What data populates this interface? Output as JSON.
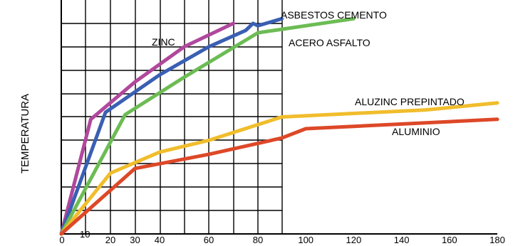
{
  "chart_data": {
    "type": "line",
    "ylabel": "TEMPERATURA",
    "xlabel": "",
    "grid": true,
    "xticks": [
      {
        "v": 0,
        "label": "0"
      },
      {
        "v": 10,
        "label": "10"
      },
      {
        "v": 20,
        "label": "20"
      },
      {
        "v": 30,
        "label": "30"
      },
      {
        "v": 40,
        "label": "40"
      },
      {
        "v": 60,
        "label": "60"
      },
      {
        "v": 80,
        "label": "80"
      },
      {
        "v": 100,
        "label": "100"
      },
      {
        "v": 120,
        "label": "120"
      },
      {
        "v": 140,
        "label": "140"
      },
      {
        "v": 160,
        "label": "160"
      },
      {
        "v": 180,
        "label": "180"
      }
    ],
    "series": [
      {
        "name": "ZINC",
        "color": "#b0489c",
        "points": [
          [
            0,
            0
          ],
          [
            12,
            4.9
          ],
          [
            30,
            6.5
          ],
          [
            50,
            8
          ],
          [
            70,
            9
          ]
        ]
      },
      {
        "name": "ASBESTOS CEMENTO",
        "color": "#3a5fb3",
        "points": [
          [
            0,
            0
          ],
          [
            18,
            5.2
          ],
          [
            40,
            6.8
          ],
          [
            60,
            8
          ],
          [
            75,
            8.7
          ],
          [
            78,
            9
          ],
          [
            80,
            8.9
          ],
          [
            90,
            9.2
          ]
        ]
      },
      {
        "name": "ACERO ASFALTO",
        "color": "#6cbc54",
        "points": [
          [
            0,
            0
          ],
          [
            26,
            5.1
          ],
          [
            50,
            6.7
          ],
          [
            80,
            8.6
          ],
          [
            120,
            9.2
          ]
        ]
      },
      {
        "name": "ALUZINC PREPINTADO",
        "color": "#f0bd2c",
        "points": [
          [
            0,
            0
          ],
          [
            20,
            2.6
          ],
          [
            40,
            3.5
          ],
          [
            60,
            4.0
          ],
          [
            90,
            5.0
          ],
          [
            150,
            5.3
          ],
          [
            180,
            5.6
          ]
        ]
      },
      {
        "name": "ALUMINIO",
        "color": "#dd4828",
        "points": [
          [
            0,
            0
          ],
          [
            30,
            2.8
          ],
          [
            60,
            3.4
          ],
          [
            90,
            4.1
          ],
          [
            100,
            4.5
          ],
          [
            180,
            4.9
          ]
        ]
      }
    ]
  }
}
